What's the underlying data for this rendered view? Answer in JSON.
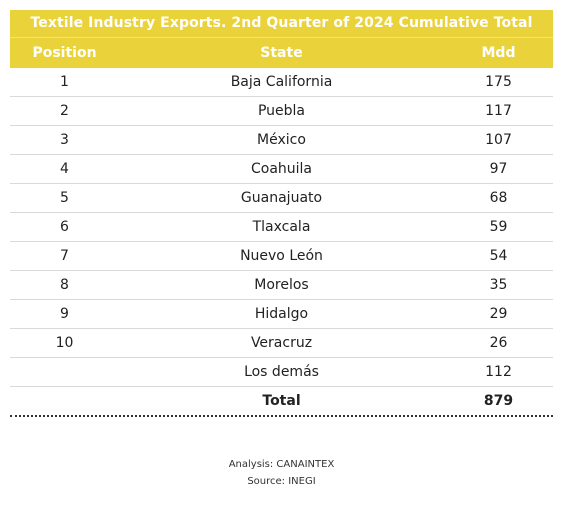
{
  "chart_data": {
    "type": "table",
    "title": "Textile Industry Exports. 2nd Quarter of 2024 Cumulative Total",
    "columns": [
      "Position",
      "State",
      "Mdd"
    ],
    "rows": [
      {
        "position": "1",
        "state": "Baja California",
        "mdd": "175"
      },
      {
        "position": "2",
        "state": "Puebla",
        "mdd": "117"
      },
      {
        "position": "3",
        "state": "México",
        "mdd": "107"
      },
      {
        "position": "4",
        "state": "Coahuila",
        "mdd": "97"
      },
      {
        "position": "5",
        "state": "Guanajuato",
        "mdd": "68"
      },
      {
        "position": "6",
        "state": "Tlaxcala",
        "mdd": "59"
      },
      {
        "position": "7",
        "state": "Nuevo León",
        "mdd": "54"
      },
      {
        "position": "8",
        "state": "Morelos",
        "mdd": "35"
      },
      {
        "position": "9",
        "state": "Hidalgo",
        "mdd": "29"
      },
      {
        "position": "10",
        "state": "Veracruz",
        "mdd": "26"
      },
      {
        "position": "",
        "state": "Los demás",
        "mdd": "112"
      }
    ],
    "total": {
      "label": "Total",
      "value": "879"
    },
    "header_color": "#ead33a"
  },
  "footer": {
    "analysis": "Analysis: CANAINTEX",
    "source": "Source: INEGI"
  }
}
